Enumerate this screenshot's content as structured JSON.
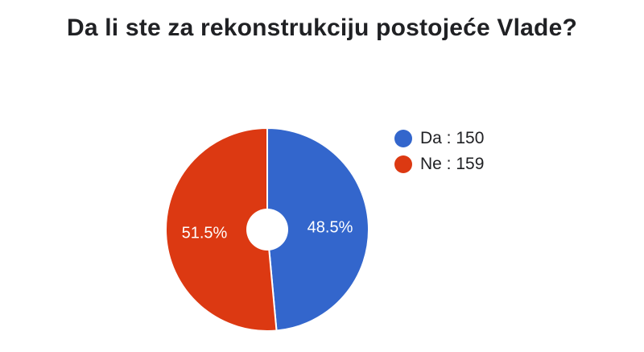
{
  "chart_data": {
    "type": "pie",
    "title": "Da li ste za rekonstrukciju postojeće Vlade?",
    "donut_hole": true,
    "legend_position": "right",
    "slices": [
      {
        "label": "Da",
        "value": 150,
        "percent_label": "48.5%",
        "legend_text": "Da : 150",
        "color": "#3366CC"
      },
      {
        "label": "Ne",
        "value": 159,
        "percent_label": "51.5%",
        "legend_text": "Ne : 159",
        "color": "#DC3912"
      }
    ]
  }
}
